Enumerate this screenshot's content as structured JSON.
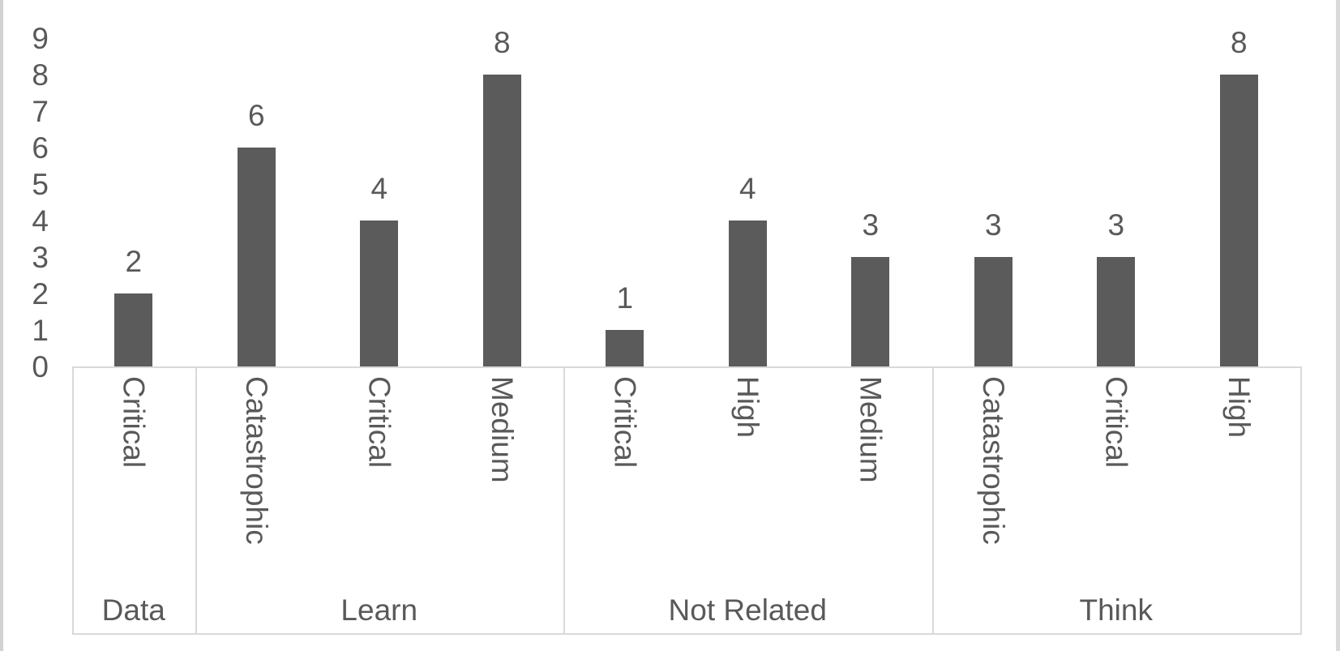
{
  "chart_data": {
    "type": "bar",
    "title": "",
    "xlabel": "",
    "ylabel": "",
    "ylim": [
      0,
      9
    ],
    "yticks": [
      "0",
      "1",
      "2",
      "3",
      "4",
      "5",
      "6",
      "7",
      "8",
      "9"
    ],
    "grid": false,
    "legend": false,
    "data_labels_shown": true,
    "categories": [
      "Critical",
      "Catastrophic",
      "Critical",
      "Medium",
      "Critical",
      "High",
      "Medium",
      "Catastrophic",
      "Critical",
      "High"
    ],
    "values": [
      2,
      6,
      4,
      8,
      1,
      4,
      3,
      3,
      3,
      8
    ],
    "groups": [
      {
        "label": "Data",
        "items": [
          {
            "category": "Critical",
            "value": 2
          }
        ]
      },
      {
        "label": "Learn",
        "items": [
          {
            "category": "Catastrophic",
            "value": 6
          },
          {
            "category": "Critical",
            "value": 4
          },
          {
            "category": "Medium",
            "value": 8
          }
        ]
      },
      {
        "label": "Not Related",
        "items": [
          {
            "category": "Critical",
            "value": 1
          },
          {
            "category": "High",
            "value": 4
          },
          {
            "category": "Medium",
            "value": 3
          }
        ]
      },
      {
        "label": "Think",
        "items": [
          {
            "category": "Catastrophic",
            "value": 3
          },
          {
            "category": "Critical",
            "value": 3
          },
          {
            "category": "High",
            "value": 8
          }
        ]
      }
    ],
    "colors": {
      "bar": "#5b5b5b",
      "text": "#595959",
      "axis_lines": "#d9d9d9"
    }
  }
}
